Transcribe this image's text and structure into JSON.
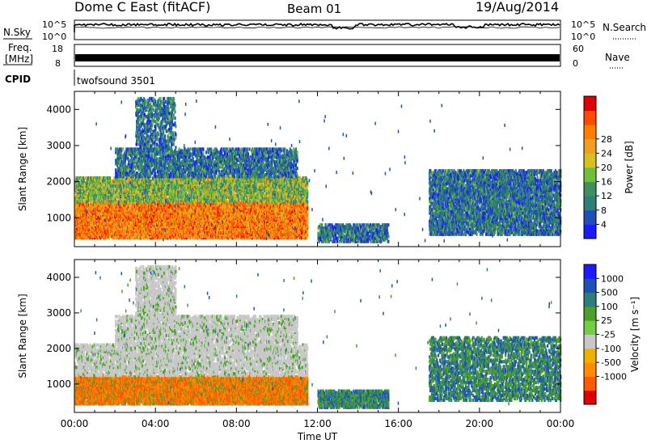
{
  "header": {
    "station": "Dome C East (fitACF)",
    "beam": "Beam 01",
    "date": "19/Aug/2014"
  },
  "nsky": {
    "label": "N.Sky",
    "tick_top": "10^5",
    "tick_bottom": "10^0",
    "right_label": "N.Search",
    "right_tick_top": "10^5",
    "right_tick_bottom": "10^0"
  },
  "freq": {
    "label_line1": "Freq.",
    "label_line2": "[MHz]",
    "tick_top": "18",
    "tick_bottom": "8",
    "right_label": "Nave",
    "right_tick_top": "60",
    "right_tick_bottom": "0"
  },
  "cpid": {
    "label": "CPID",
    "value": "twofsound 3501"
  },
  "colors": {
    "axis": "#000000",
    "background": "#ffffff"
  },
  "chart_data": [
    {
      "type": "heatmap",
      "name": "power-panel",
      "xlabel": "",
      "ylabel": "Slant Range [km]",
      "x_range_hours": [
        0,
        24
      ],
      "ylim": [
        200,
        4500
      ],
      "yticks": [
        "1000",
        "2000",
        "3000",
        "4000"
      ],
      "colorbar": {
        "label": "Power [dB]",
        "ticks": [
          "4",
          "8",
          "12",
          "16",
          "20",
          "24",
          "28"
        ],
        "colors": [
          "#1a1aff",
          "#1f4fb8",
          "#2e7f7a",
          "#3f8f5f",
          "#6fbf3f",
          "#d8c020",
          "#f0a020",
          "#ff7f00",
          "#ff4a00",
          "#e00000"
        ]
      },
      "echo_regions": [
        {
          "t0": 0.0,
          "t1": 11.5,
          "r0": 400,
          "r1": 1400,
          "level": 0.85
        },
        {
          "t0": 0.0,
          "t1": 11.5,
          "r0": 1400,
          "r1": 2100,
          "level": 0.6
        },
        {
          "t0": 2.0,
          "t1": 11.0,
          "r0": 2100,
          "r1": 2900,
          "level": 0.45
        },
        {
          "t0": 3.0,
          "t1": 5.0,
          "r0": 2900,
          "r1": 4300,
          "level": 0.3
        },
        {
          "t0": 12.0,
          "t1": 15.5,
          "r0": 300,
          "r1": 800,
          "level": 0.5
        },
        {
          "t0": 17.5,
          "t1": 24.0,
          "r0": 500,
          "r1": 2300,
          "level": 0.55
        }
      ]
    },
    {
      "type": "heatmap",
      "name": "velocity-panel",
      "xlabel": "Time UT",
      "ylabel": "Slant Range [km]",
      "x_range_hours": [
        0,
        24
      ],
      "ylim": [
        200,
        4500
      ],
      "yticks": [
        "1000",
        "2000",
        "3000",
        "4000"
      ],
      "xticks": [
        "00:00",
        "04:00",
        "08:00",
        "12:00",
        "16:00",
        "20:00",
        "00:00"
      ],
      "colorbar": {
        "label": "Velocity [m s⁻¹]",
        "ticks": [
          "1000",
          "500",
          "100",
          "25",
          "-25",
          "-100",
          "-500",
          "-1000"
        ],
        "colors": [
          "#1a1aff",
          "#1f4fb8",
          "#2e7f7a",
          "#4aa02a",
          "#6fd040",
          "#c8c8c8",
          "#f0b000",
          "#ff8c00",
          "#ff5a00",
          "#e00000"
        ]
      },
      "echo_regions": [
        {
          "t0": 0.0,
          "t1": 11.5,
          "r0": 400,
          "r1": 1200,
          "level": 0.75
        },
        {
          "t0": 0.0,
          "t1": 11.5,
          "r0": 1200,
          "r1": 2100,
          "level": 0.45
        },
        {
          "t0": 2.0,
          "t1": 11.0,
          "r0": 2100,
          "r1": 2900,
          "level": 0.45
        },
        {
          "t0": 3.0,
          "t1": 5.0,
          "r0": 2900,
          "r1": 4300,
          "level": 0.45
        },
        {
          "t0": 12.0,
          "t1": 15.5,
          "r0": 300,
          "r1": 800,
          "level": 0.6
        },
        {
          "t0": 17.5,
          "t1": 24.0,
          "r0": 500,
          "r1": 2300,
          "level": 0.35
        }
      ]
    }
  ]
}
